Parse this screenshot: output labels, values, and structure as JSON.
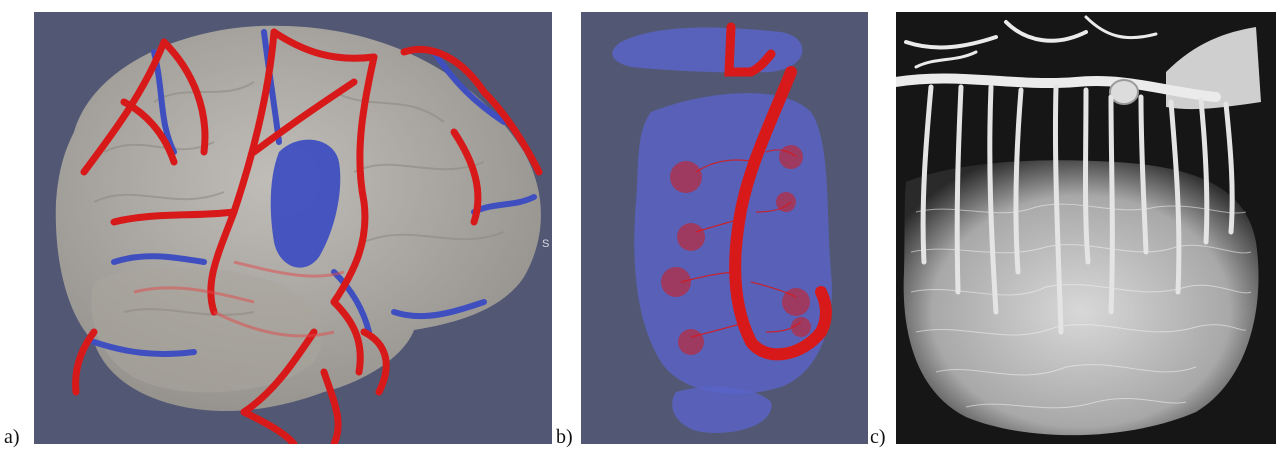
{
  "labels": {
    "a": "a)",
    "b": "b)",
    "c": "c)"
  },
  "panel_a": {
    "background": "#525873",
    "artery_color": "#d8191a",
    "vein_color": "#3f4fc0",
    "brain_color": "#b8b4aa",
    "edge_mark": "S"
  },
  "panel_b": {
    "background": "#525873",
    "artery_color": "#d8191a",
    "tissue_color": "#5a64c8"
  },
  "panel_c": {
    "background": "#161616",
    "cast_color": "#e6e6e6"
  }
}
